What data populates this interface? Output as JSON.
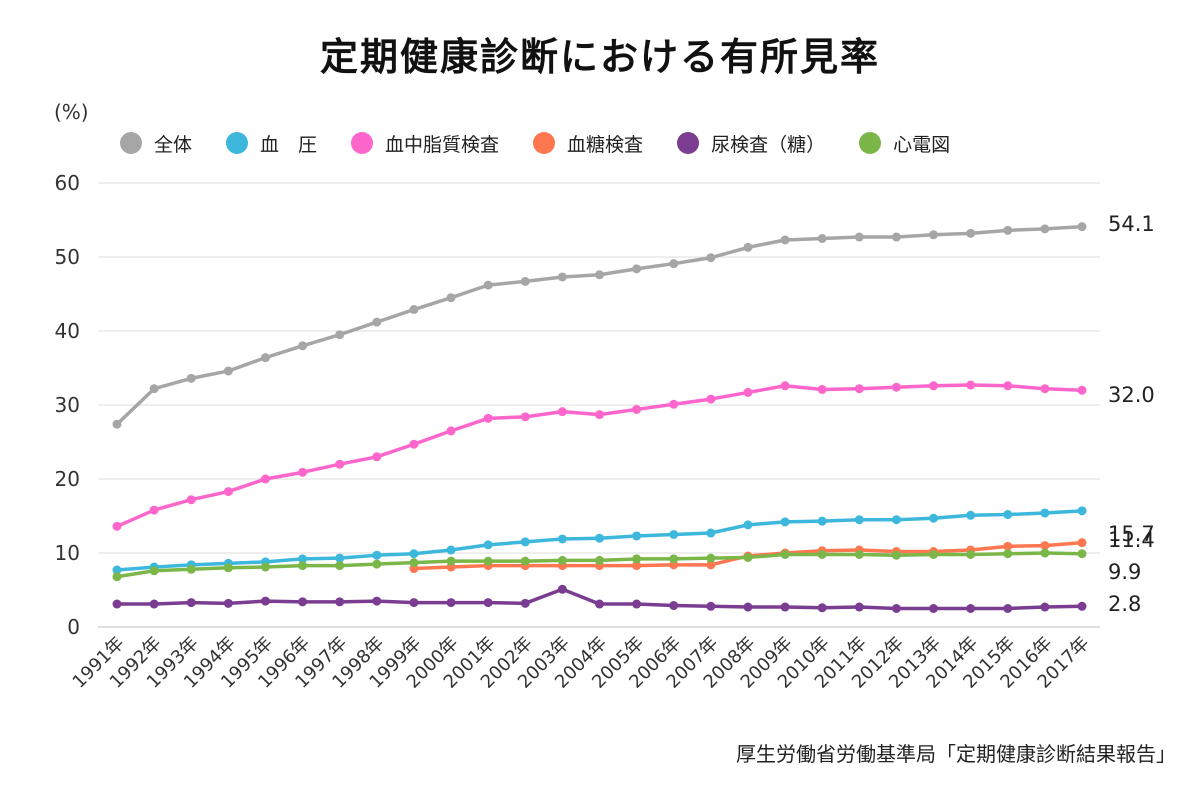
{
  "page": {
    "title": "定期健康診断における有所見率",
    "unit_label": "(%)",
    "source": "厚生労働省労働基準局「定期健康診断結果報告」"
  },
  "chart_data": {
    "type": "line",
    "title": "定期健康診断における有所見率",
    "ylabel": "(%)",
    "xlabel": "",
    "ylim": [
      0,
      60
    ],
    "yticks": [
      0,
      10,
      20,
      30,
      40,
      50,
      60
    ],
    "grid": true,
    "legend_position": "top",
    "categories": [
      "1991年",
      "1992年",
      "1993年",
      "1994年",
      "1995年",
      "1996年",
      "1997年",
      "1998年",
      "1999年",
      "2000年",
      "2001年",
      "2002年",
      "2003年",
      "2004年",
      "2005年",
      "2006年",
      "2007年",
      "2008年",
      "2009年",
      "2010年",
      "2011年",
      "2012年",
      "2013年",
      "2014年",
      "2015年",
      "2016年",
      "2017年"
    ],
    "series": [
      {
        "name": "全体",
        "color": "#a6a6a6",
        "values": [
          27.4,
          32.2,
          33.6,
          34.6,
          36.4,
          38.0,
          39.5,
          41.2,
          42.9,
          44.5,
          46.2,
          46.7,
          47.3,
          47.6,
          48.4,
          49.1,
          49.9,
          51.3,
          52.3,
          52.5,
          52.7,
          52.7,
          53.0,
          53.2,
          53.6,
          53.8,
          54.1
        ],
        "end_label": "54.1"
      },
      {
        "name": "血　圧",
        "color": "#3db8dc",
        "values": [
          7.7,
          8.1,
          8.4,
          8.6,
          8.8,
          9.2,
          9.3,
          9.7,
          9.9,
          10.4,
          11.1,
          11.5,
          11.9,
          12.0,
          12.3,
          12.5,
          12.7,
          13.8,
          14.2,
          14.3,
          14.5,
          14.5,
          14.7,
          15.1,
          15.2,
          15.4,
          15.7
        ],
        "end_label": "15.7"
      },
      {
        "name": "血中脂質検査",
        "color": "#ff66cc",
        "values": [
          13.6,
          15.8,
          17.2,
          18.3,
          20.0,
          20.9,
          22.0,
          23.0,
          24.7,
          26.5,
          28.2,
          28.4,
          29.1,
          28.7,
          29.4,
          30.1,
          30.8,
          31.7,
          32.6,
          32.1,
          32.2,
          32.4,
          32.6,
          32.7,
          32.6,
          32.2,
          32.0
        ],
        "end_label": "32.0"
      },
      {
        "name": "血糖検査",
        "color": "#ff7750",
        "values": [
          null,
          null,
          null,
          null,
          null,
          null,
          null,
          null,
          7.9,
          8.1,
          8.3,
          8.3,
          8.3,
          8.3,
          8.3,
          8.4,
          8.4,
          9.6,
          10.0,
          10.3,
          10.4,
          10.2,
          10.2,
          10.4,
          10.9,
          11.0,
          11.4
        ],
        "end_label": "11.4"
      },
      {
        "name": "尿検査（糖）",
        "color": "#7a3d91",
        "values": [
          3.1,
          3.1,
          3.3,
          3.2,
          3.5,
          3.4,
          3.4,
          3.5,
          3.3,
          3.3,
          3.3,
          3.2,
          5.1,
          3.1,
          3.1,
          2.9,
          2.8,
          2.7,
          2.7,
          2.6,
          2.7,
          2.5,
          2.5,
          2.5,
          2.5,
          2.7,
          2.8
        ],
        "end_label": "2.8"
      },
      {
        "name": "心電図",
        "color": "#7ab648",
        "values": [
          6.8,
          7.6,
          7.8,
          8.0,
          8.1,
          8.3,
          8.3,
          8.5,
          8.7,
          8.9,
          8.9,
          8.9,
          9.0,
          9.0,
          9.2,
          9.2,
          9.3,
          9.4,
          9.8,
          9.8,
          9.8,
          9.7,
          9.8,
          9.8,
          9.9,
          10.0,
          9.9
        ],
        "end_label": "9.9"
      }
    ]
  }
}
